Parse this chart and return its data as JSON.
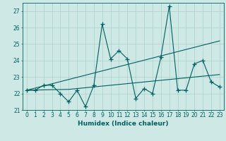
{
  "xlabel": "Humidex (Indice chaleur)",
  "ylabel": "",
  "background_color": "#cde8e5",
  "grid_color": "#aad0cc",
  "line_color": "#006060",
  "x_data": [
    0,
    1,
    2,
    3,
    4,
    5,
    6,
    7,
    8,
    9,
    10,
    11,
    12,
    13,
    14,
    15,
    16,
    17,
    18,
    19,
    20,
    21,
    22,
    23
  ],
  "y_main": [
    22.2,
    22.2,
    22.5,
    22.5,
    22.0,
    21.5,
    22.2,
    21.2,
    22.5,
    26.2,
    24.1,
    24.6,
    24.1,
    21.7,
    22.3,
    22.0,
    24.2,
    27.3,
    22.2,
    22.2,
    23.8,
    24.0,
    22.7,
    22.4
  ],
  "y_trend1": [
    22.2,
    22.33,
    22.46,
    22.59,
    22.72,
    22.85,
    22.98,
    23.11,
    23.24,
    23.37,
    23.5,
    23.63,
    23.76,
    23.89,
    24.02,
    24.15,
    24.28,
    24.41,
    24.54,
    24.67,
    24.8,
    24.93,
    25.06,
    25.19
  ],
  "y_trend2": [
    22.2,
    22.21,
    22.22,
    22.23,
    22.24,
    22.25,
    22.3,
    22.35,
    22.4,
    22.45,
    22.5,
    22.55,
    22.6,
    22.65,
    22.7,
    22.75,
    22.8,
    22.85,
    22.9,
    22.95,
    23.0,
    23.05,
    23.1,
    23.15
  ],
  "ylim": [
    21.0,
    27.5
  ],
  "xlim": [
    -0.5,
    23.5
  ],
  "yticks": [
    21,
    22,
    23,
    24,
    25,
    26,
    27
  ],
  "xticks": [
    0,
    1,
    2,
    3,
    4,
    5,
    6,
    7,
    8,
    9,
    10,
    11,
    12,
    13,
    14,
    15,
    16,
    17,
    18,
    19,
    20,
    21,
    22,
    23
  ],
  "marker": "+",
  "markersize": 4,
  "linewidth": 0.8,
  "xlabel_fontsize": 6.5,
  "tick_fontsize": 5.5
}
